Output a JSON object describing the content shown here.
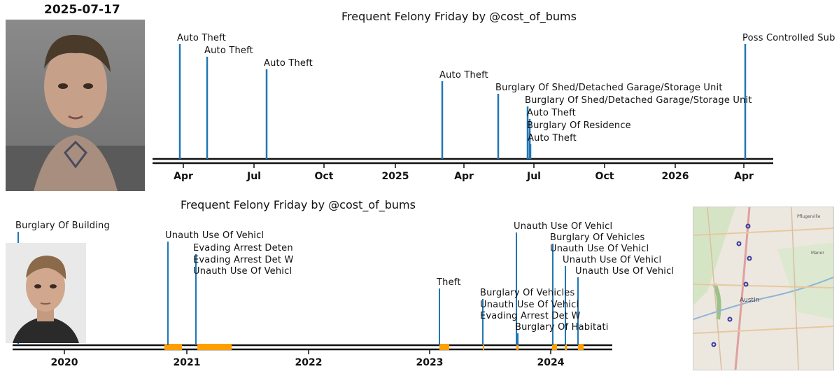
{
  "panel1": {
    "date": "2025-07-17",
    "title": "Frequent Felony Friday by @cost_of_bums",
    "events": [
      "Auto Theft",
      "Auto Theft",
      "Auto Theft",
      "Auto Theft",
      "Burglary Of Shed/Detached Garage/Storage Unit",
      "Burglary Of Shed/Detached Garage/Storage Unit",
      "Auto Theft",
      "Burglary Of Residence",
      "Auto Theft",
      "Poss Controlled Sub"
    ],
    "ticks": [
      "Apr",
      "Jul",
      "Oct",
      "2025",
      "Apr",
      "Jul",
      "Oct",
      "2026",
      "Apr"
    ]
  },
  "panel2": {
    "title": "Frequent Felony Friday by @cost_of_bums",
    "events": [
      "Burglary Of Building",
      "Unauth Use Of Vehicl",
      "Evading Arrest Deten",
      "Evading Arrest Det W",
      "Unauth Use Of Vehicl",
      "Theft",
      "Burglary Of Vehicles",
      "Unauth Use Of Vehicl",
      "Evading Arrest Det W",
      "Burglary Of Habitati",
      "Unauth Use Of Vehicl",
      "Burglary Of Vehicles",
      "Unauth Use Of Vehicl",
      "Unauth Use Of Vehicl",
      "Unauth Use Of Vehicl"
    ],
    "ticks": [
      "2020",
      "2021",
      "2022",
      "2023",
      "2024"
    ]
  },
  "map": {
    "labels": [
      "Austin",
      "Pflugerville",
      "Manor"
    ]
  },
  "colors": {
    "stem": "#1f77b4",
    "jail": "#ff9f00",
    "axis": "#111111"
  }
}
